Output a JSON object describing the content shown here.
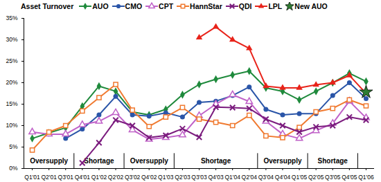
{
  "chart_data": {
    "type": "line",
    "title": "Asset Turnover",
    "categories": [
      "Q1'01",
      "Q2'01",
      "Q3'01",
      "Q4'01",
      "Q1'02",
      "Q2'02",
      "Q3'02",
      "Q4'02",
      "Q1'03",
      "Q2'03",
      "Q3'03",
      "Q4'03",
      "Q1'04",
      "Q2'04",
      "Q3'04",
      "Q4'04",
      "Q1'05",
      "Q2'05",
      "Q3'05",
      "Q4'05",
      "Q1'06"
    ],
    "series": [
      {
        "name": "AUO",
        "color": "#1f8a3c",
        "marker": "diamond",
        "values": [
          7,
          8.3,
          9.5,
          14.5,
          19.2,
          18,
          13.2,
          12.5,
          13.8,
          17.2,
          19.6,
          20.8,
          21.8,
          22.7,
          18.8,
          18,
          16,
          18,
          20,
          22.2,
          20.3
        ]
      },
      {
        "name": "CMO",
        "color": "#2a55a8",
        "marker": "circle",
        "values": [
          null,
          null,
          7,
          9.2,
          12.5,
          16.8,
          12.5,
          12.2,
          13,
          12,
          15.4,
          15.7,
          17,
          19,
          13.8,
          12.5,
          12.8,
          12.8,
          17,
          20,
          16.3
        ]
      },
      {
        "name": "CPT",
        "color": "#c062c8",
        "marker": "triangle-open",
        "values": [
          8.5,
          8,
          8,
          10.2,
          11,
          13,
          9,
          6.8,
          7.2,
          7.8,
          12.3,
          15,
          17.2,
          15.6,
          11,
          8,
          7,
          8.8,
          10.5,
          15.7,
          11.8
        ]
      },
      {
        "name": "HannStar",
        "color": "#f07a30",
        "marker": "square-open",
        "values": [
          4.3,
          8.5,
          10,
          13.4,
          16.5,
          19.6,
          13.6,
          9.8,
          12,
          14.2,
          11.5,
          10.8,
          10,
          12.4,
          7.6,
          7.2,
          9.6,
          13.2,
          14,
          16,
          14.6
        ]
      },
      {
        "name": "QDI",
        "color": "#7b1c7e",
        "marker": "times",
        "values": [
          null,
          null,
          null,
          1.3,
          6,
          11.3,
          10,
          7.2,
          7.7,
          9.3,
          7.3,
          14.3,
          14.2,
          14,
          11.5,
          10,
          8.5,
          9.7,
          10,
          12,
          11.3
        ]
      },
      {
        "name": "LPL",
        "color": "#e8231a",
        "marker": "triangle",
        "values": [
          null,
          null,
          null,
          null,
          null,
          null,
          null,
          null,
          null,
          null,
          30.5,
          33,
          30,
          28,
          19.2,
          18.8,
          18.8,
          19.5,
          20,
          21.7,
          17.5
        ]
      },
      {
        "name": "New AUO",
        "color": "#2e7d32",
        "marker": "star",
        "values": [
          null,
          null,
          null,
          null,
          null,
          null,
          null,
          null,
          null,
          null,
          null,
          null,
          null,
          null,
          null,
          null,
          null,
          null,
          null,
          null,
          17.8
        ]
      }
    ],
    "ylim": [
      0,
      35
    ],
    "yticks": [
      {
        "value": 0,
        "label": "0%"
      },
      {
        "value": 5,
        "label": "5%"
      },
      {
        "value": 10,
        "label": "10%"
      },
      {
        "value": 15,
        "label": "15%"
      },
      {
        "value": 20,
        "label": "20%"
      },
      {
        "value": 25,
        "label": "25%"
      },
      {
        "value": 30,
        "label": "30%"
      },
      {
        "value": 35,
        "label": "35%"
      }
    ],
    "grid": false,
    "legend": "top",
    "periods": [
      {
        "label": "Oversupply",
        "start": "Q1'01",
        "end": "Q3'01"
      },
      {
        "label": "Shortage",
        "start": "Q4'01",
        "end": "Q2'02"
      },
      {
        "label": "Oversupply",
        "start": "Q3'02",
        "end": "Q1'03"
      },
      {
        "label": "Shortage",
        "start": "Q2'03",
        "end": "Q2'04"
      },
      {
        "label": "Oversupply",
        "start": "Q3'04",
        "end": "Q1'05"
      },
      {
        "label": "Shortage",
        "start": "Q2'05",
        "end": "Q4'05"
      }
    ]
  }
}
